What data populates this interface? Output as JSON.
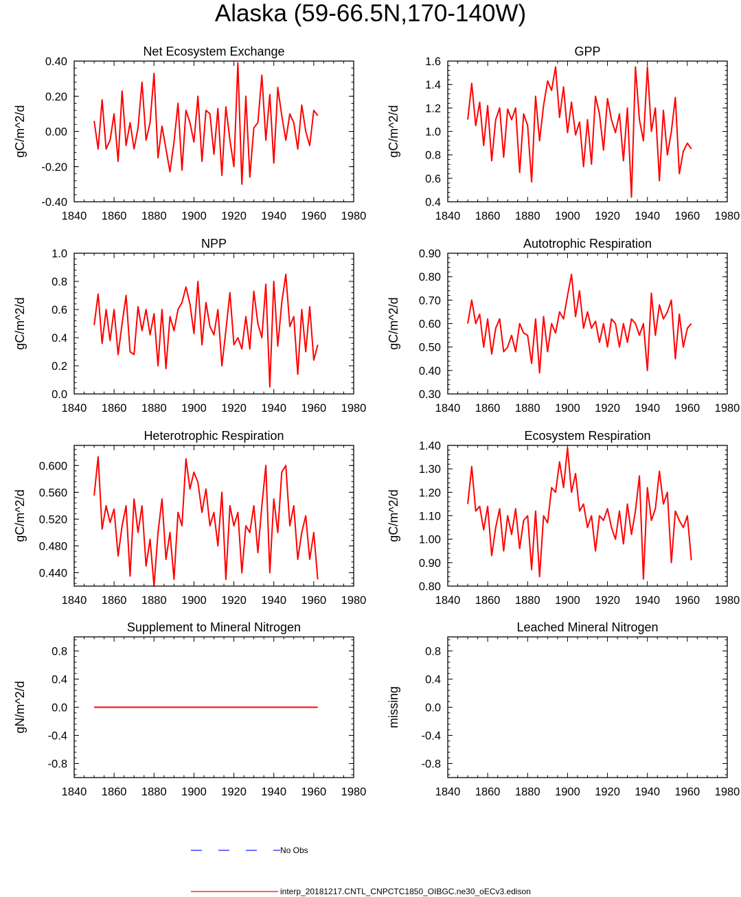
{
  "title": "Alaska (59-66.5N,170-140W)",
  "legend": {
    "obs_label": "No Obs",
    "obs_color": "#1a1aff",
    "model_label": "interp_20181217.CNTL_CNPCTC1850_OIBGC.ne30_oECv3.edison",
    "model_color": "#ff0000"
  },
  "chart_data": [
    {
      "type": "line",
      "title": "Net Ecosystem Exchange",
      "ylabel": "gC/m^2/d",
      "xlim": [
        1840,
        1980
      ],
      "ylim": [
        -0.4,
        0.4
      ],
      "xticks": [
        1840,
        1860,
        1880,
        1900,
        1920,
        1940,
        1960,
        1980
      ],
      "yticks": [
        -0.4,
        -0.2,
        0.0,
        0.2,
        0.4
      ],
      "ytick_labels": [
        "-0.40",
        "-0.20",
        "0.00",
        "0.20",
        "0.40"
      ],
      "x": [
        1850,
        1852,
        1854,
        1856,
        1858,
        1860,
        1862,
        1864,
        1866,
        1868,
        1870,
        1872,
        1874,
        1876,
        1878,
        1880,
        1882,
        1884,
        1886,
        1888,
        1890,
        1892,
        1894,
        1896,
        1898,
        1900,
        1902,
        1904,
        1906,
        1908,
        1910,
        1912,
        1914,
        1916,
        1918,
        1920,
        1922,
        1924,
        1926,
        1928,
        1930,
        1932,
        1934,
        1936,
        1938,
        1940,
        1942,
        1944,
        1946,
        1948,
        1950,
        1952,
        1954,
        1956,
        1958,
        1960,
        1962
      ],
      "series": [
        {
          "name": "model",
          "color": "#ff0000",
          "values": [
            0.06,
            -0.1,
            0.18,
            -0.1,
            -0.05,
            0.1,
            -0.17,
            0.23,
            -0.08,
            0.05,
            -0.1,
            0.02,
            0.28,
            -0.05,
            0.05,
            0.33,
            -0.15,
            0.03,
            -0.1,
            -0.23,
            -0.06,
            0.16,
            -0.22,
            0.12,
            0.05,
            -0.06,
            0.2,
            -0.17,
            0.12,
            0.1,
            -0.13,
            0.13,
            -0.25,
            0.14,
            -0.05,
            -0.2,
            0.39,
            -0.3,
            0.2,
            -0.26,
            0.02,
            0.05,
            0.32,
            -0.05,
            0.21,
            -0.18,
            0.25,
            0.09,
            -0.05,
            0.1,
            0.05,
            -0.1,
            0.15,
            0.0,
            -0.08,
            0.12,
            0.09
          ]
        }
      ]
    },
    {
      "type": "line",
      "title": "GPP",
      "ylabel": "gC/m^2/d",
      "xlim": [
        1840,
        1980
      ],
      "ylim": [
        0.4,
        1.6
      ],
      "xticks": [
        1840,
        1860,
        1880,
        1900,
        1920,
        1940,
        1960,
        1980
      ],
      "yticks": [
        0.4,
        0.6,
        0.8,
        1.0,
        1.2,
        1.4,
        1.6
      ],
      "ytick_labels": [
        "0.4",
        "0.6",
        "0.8",
        "1.0",
        "1.2",
        "1.4",
        "1.6"
      ],
      "x": [
        1850,
        1852,
        1854,
        1856,
        1858,
        1860,
        1862,
        1864,
        1866,
        1868,
        1870,
        1872,
        1874,
        1876,
        1878,
        1880,
        1882,
        1884,
        1886,
        1888,
        1890,
        1892,
        1894,
        1896,
        1898,
        1900,
        1902,
        1904,
        1906,
        1908,
        1910,
        1912,
        1914,
        1916,
        1918,
        1920,
        1922,
        1924,
        1926,
        1928,
        1930,
        1932,
        1934,
        1936,
        1938,
        1940,
        1942,
        1944,
        1946,
        1948,
        1950,
        1952,
        1954,
        1956,
        1958,
        1960,
        1962
      ],
      "series": [
        {
          "name": "model",
          "color": "#ff0000",
          "values": [
            1.1,
            1.41,
            1.05,
            1.25,
            0.88,
            1.22,
            0.75,
            1.1,
            1.2,
            0.78,
            1.19,
            1.1,
            1.2,
            0.65,
            1.15,
            1.05,
            0.57,
            1.3,
            0.92,
            1.22,
            1.43,
            1.35,
            1.55,
            1.12,
            1.38,
            0.99,
            1.25,
            0.97,
            1.08,
            0.7,
            1.1,
            0.72,
            1.3,
            1.15,
            0.84,
            1.28,
            1.1,
            0.99,
            1.15,
            0.75,
            1.2,
            0.44,
            1.55,
            1.1,
            0.92,
            1.55,
            1.0,
            1.2,
            0.58,
            1.18,
            0.8,
            1.0,
            1.29,
            0.64,
            0.83,
            0.9,
            0.85
          ]
        }
      ]
    },
    {
      "type": "line",
      "title": "NPP",
      "ylabel": "gC/m^2/d",
      "xlim": [
        1840,
        1980
      ],
      "ylim": [
        0.0,
        1.0
      ],
      "xticks": [
        1840,
        1860,
        1880,
        1900,
        1920,
        1940,
        1960,
        1980
      ],
      "yticks": [
        0.0,
        0.2,
        0.4,
        0.6,
        0.8,
        1.0
      ],
      "ytick_labels": [
        "0.0",
        "0.2",
        "0.4",
        "0.6",
        "0.8",
        "1.0"
      ],
      "x": [
        1850,
        1852,
        1854,
        1856,
        1858,
        1860,
        1862,
        1864,
        1866,
        1868,
        1870,
        1872,
        1874,
        1876,
        1878,
        1880,
        1882,
        1884,
        1886,
        1888,
        1890,
        1892,
        1894,
        1896,
        1898,
        1900,
        1902,
        1904,
        1906,
        1908,
        1910,
        1912,
        1914,
        1916,
        1918,
        1920,
        1922,
        1924,
        1926,
        1928,
        1930,
        1932,
        1934,
        1936,
        1938,
        1940,
        1942,
        1944,
        1946,
        1948,
        1950,
        1952,
        1954,
        1956,
        1958,
        1960,
        1962
      ],
      "series": [
        {
          "name": "model",
          "color": "#ff0000",
          "values": [
            0.49,
            0.71,
            0.36,
            0.6,
            0.38,
            0.6,
            0.28,
            0.5,
            0.7,
            0.3,
            0.28,
            0.62,
            0.45,
            0.6,
            0.42,
            0.57,
            0.2,
            0.6,
            0.18,
            0.55,
            0.45,
            0.6,
            0.65,
            0.76,
            0.64,
            0.43,
            0.8,
            0.35,
            0.65,
            0.48,
            0.42,
            0.6,
            0.2,
            0.45,
            0.72,
            0.35,
            0.4,
            0.32,
            0.55,
            0.32,
            0.73,
            0.5,
            0.4,
            0.78,
            0.05,
            0.8,
            0.34,
            0.65,
            0.85,
            0.48,
            0.55,
            0.14,
            0.6,
            0.3,
            0.62,
            0.24,
            0.35
          ]
        }
      ]
    },
    {
      "type": "line",
      "title": "Autotrophic Respiration",
      "ylabel": "gC/m^2/d",
      "xlim": [
        1840,
        1980
      ],
      "ylim": [
        0.3,
        0.9
      ],
      "xticks": [
        1840,
        1860,
        1880,
        1900,
        1920,
        1940,
        1960,
        1980
      ],
      "yticks": [
        0.3,
        0.4,
        0.5,
        0.6,
        0.7,
        0.8,
        0.9
      ],
      "ytick_labels": [
        "0.30",
        "0.40",
        "0.50",
        "0.60",
        "0.70",
        "0.80",
        "0.90"
      ],
      "x": [
        1850,
        1852,
        1854,
        1856,
        1858,
        1860,
        1862,
        1864,
        1866,
        1868,
        1870,
        1872,
        1874,
        1876,
        1878,
        1880,
        1882,
        1884,
        1886,
        1888,
        1890,
        1892,
        1894,
        1896,
        1898,
        1900,
        1902,
        1904,
        1906,
        1908,
        1910,
        1912,
        1914,
        1916,
        1918,
        1920,
        1922,
        1924,
        1926,
        1928,
        1930,
        1932,
        1934,
        1936,
        1938,
        1940,
        1942,
        1944,
        1946,
        1948,
        1950,
        1952,
        1954,
        1956,
        1958,
        1960,
        1962
      ],
      "series": [
        {
          "name": "model",
          "color": "#ff0000",
          "values": [
            0.6,
            0.7,
            0.6,
            0.64,
            0.5,
            0.62,
            0.47,
            0.58,
            0.62,
            0.48,
            0.5,
            0.55,
            0.48,
            0.6,
            0.56,
            0.55,
            0.43,
            0.62,
            0.39,
            0.63,
            0.48,
            0.6,
            0.56,
            0.65,
            0.62,
            0.72,
            0.81,
            0.63,
            0.74,
            0.58,
            0.65,
            0.58,
            0.61,
            0.52,
            0.6,
            0.5,
            0.62,
            0.6,
            0.5,
            0.6,
            0.52,
            0.62,
            0.6,
            0.55,
            0.6,
            0.4,
            0.73,
            0.55,
            0.68,
            0.62,
            0.65,
            0.7,
            0.45,
            0.64,
            0.5,
            0.58,
            0.6
          ]
        }
      ]
    },
    {
      "type": "line",
      "title": "Heterotrophic Respiration",
      "ylabel": "gC/m^2/d",
      "xlim": [
        1840,
        1980
      ],
      "ylim": [
        0.42,
        0.63
      ],
      "xticks": [
        1840,
        1860,
        1880,
        1900,
        1920,
        1940,
        1960,
        1980
      ],
      "yticks": [
        0.44,
        0.48,
        0.52,
        0.56,
        0.6
      ],
      "ytick_labels": [
        "0.440",
        "0.480",
        "0.520",
        "0.560",
        "0.600"
      ],
      "x": [
        1850,
        1852,
        1854,
        1856,
        1858,
        1860,
        1862,
        1864,
        1866,
        1868,
        1870,
        1872,
        1874,
        1876,
        1878,
        1880,
        1882,
        1884,
        1886,
        1888,
        1890,
        1892,
        1894,
        1896,
        1898,
        1900,
        1902,
        1904,
        1906,
        1908,
        1910,
        1912,
        1914,
        1916,
        1918,
        1920,
        1922,
        1924,
        1926,
        1928,
        1930,
        1932,
        1934,
        1936,
        1938,
        1940,
        1942,
        1944,
        1946,
        1948,
        1950,
        1952,
        1954,
        1956,
        1958,
        1960,
        1962
      ],
      "series": [
        {
          "name": "model",
          "color": "#ff0000",
          "values": [
            0.555,
            0.613,
            0.505,
            0.54,
            0.515,
            0.535,
            0.465,
            0.51,
            0.54,
            0.435,
            0.55,
            0.5,
            0.54,
            0.45,
            0.49,
            0.42,
            0.5,
            0.55,
            0.46,
            0.5,
            0.43,
            0.53,
            0.51,
            0.61,
            0.565,
            0.59,
            0.575,
            0.53,
            0.565,
            0.51,
            0.53,
            0.48,
            0.56,
            0.43,
            0.54,
            0.51,
            0.53,
            0.44,
            0.51,
            0.5,
            0.54,
            0.47,
            0.54,
            0.6,
            0.44,
            0.55,
            0.5,
            0.59,
            0.6,
            0.51,
            0.54,
            0.46,
            0.5,
            0.525,
            0.46,
            0.5,
            0.43
          ]
        }
      ]
    },
    {
      "type": "line",
      "title": "Ecosystem Respiration",
      "ylabel": "gC/m^2/d",
      "xlim": [
        1840,
        1980
      ],
      "ylim": [
        0.8,
        1.4
      ],
      "xticks": [
        1840,
        1860,
        1880,
        1900,
        1920,
        1940,
        1960,
        1980
      ],
      "yticks": [
        0.8,
        0.9,
        1.0,
        1.1,
        1.2,
        1.3,
        1.4
      ],
      "ytick_labels": [
        "0.80",
        "0.90",
        "1.00",
        "1.10",
        "1.20",
        "1.30",
        "1.40"
      ],
      "x": [
        1850,
        1852,
        1854,
        1856,
        1858,
        1860,
        1862,
        1864,
        1866,
        1868,
        1870,
        1872,
        1874,
        1876,
        1878,
        1880,
        1882,
        1884,
        1886,
        1888,
        1890,
        1892,
        1894,
        1896,
        1898,
        1900,
        1902,
        1904,
        1906,
        1908,
        1910,
        1912,
        1914,
        1916,
        1918,
        1920,
        1922,
        1924,
        1926,
        1928,
        1930,
        1932,
        1934,
        1936,
        1938,
        1940,
        1942,
        1944,
        1946,
        1948,
        1950,
        1952,
        1954,
        1956,
        1958,
        1960,
        1962
      ],
      "series": [
        {
          "name": "model",
          "color": "#ff0000",
          "values": [
            1.15,
            1.31,
            1.12,
            1.14,
            1.04,
            1.14,
            0.93,
            1.05,
            1.13,
            0.95,
            1.1,
            1.02,
            1.13,
            0.96,
            1.08,
            1.1,
            0.87,
            1.12,
            0.84,
            1.1,
            1.07,
            1.22,
            1.2,
            1.33,
            1.22,
            1.39,
            1.2,
            1.28,
            1.12,
            1.15,
            1.05,
            1.1,
            0.95,
            1.1,
            1.08,
            1.13,
            1.05,
            1.0,
            1.12,
            0.98,
            1.15,
            1.02,
            1.12,
            1.27,
            0.83,
            1.22,
            1.08,
            1.13,
            1.29,
            1.15,
            1.2,
            0.9,
            1.12,
            1.08,
            1.05,
            1.1,
            0.91
          ]
        }
      ]
    },
    {
      "type": "line",
      "title": "Supplement to Mineral Nitrogen",
      "ylabel": "gN/m^2/d",
      "xlim": [
        1840,
        1980
      ],
      "ylim": [
        -1.0,
        1.0
      ],
      "xticks": [
        1840,
        1860,
        1880,
        1900,
        1920,
        1940,
        1960,
        1980
      ],
      "yticks": [
        -0.8,
        -0.4,
        0.0,
        0.4,
        0.8
      ],
      "ytick_labels": [
        "-0.8",
        "-0.4",
        "0.0",
        "0.4",
        "0.8"
      ],
      "x": [
        1850,
        1962
      ],
      "series": [
        {
          "name": "model",
          "color": "#ff0000",
          "values": [
            0.0,
            0.0
          ]
        }
      ]
    },
    {
      "type": "line",
      "title": "Leached Mineral Nitrogen",
      "ylabel": "missing",
      "xlim": [
        1840,
        1980
      ],
      "ylim": [
        -1.0,
        1.0
      ],
      "xticks": [
        1840,
        1860,
        1880,
        1900,
        1920,
        1940,
        1960,
        1980
      ],
      "yticks": [
        -0.8,
        -0.4,
        0.0,
        0.4,
        0.8
      ],
      "ytick_labels": [
        "-0.8",
        "-0.4",
        "0.0",
        "0.4",
        "0.8"
      ],
      "x": [],
      "series": []
    }
  ]
}
